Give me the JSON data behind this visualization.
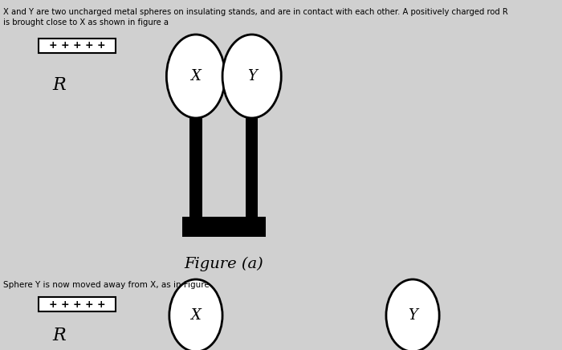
{
  "bg_color": "#d0d0d0",
  "text_color": "#000000",
  "title_text": "X and Y are two uncharged metal spheres on insulating stands, and are in contact with each other. A positively charged rod R",
  "title_text2": "is brought close to X as shown in figure a",
  "subtitle_text": "Sphere Y is now moved away from X, as in Figure",
  "figure_a_label": "Figure (a)",
  "rod_plus_signs": "+++++",
  "rod_plus_signs2": "+++++",
  "R_label": "R",
  "R_label2": "R",
  "X_label": "X",
  "Y_label": "Y",
  "X2_label": "X",
  "Y2_label": "Y"
}
